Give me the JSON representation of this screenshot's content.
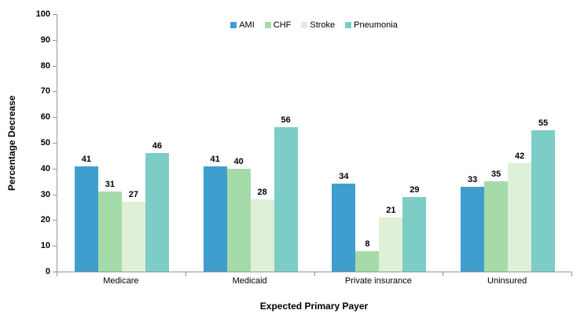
{
  "chart_data": {
    "type": "bar",
    "title": "",
    "categories": [
      "Medicare",
      "Medicaid",
      "Private insurance",
      "Uninsured"
    ],
    "series": [
      {
        "name": "AMI",
        "color": "#3f9ecd",
        "values": [
          41,
          41,
          34,
          33
        ]
      },
      {
        "name": "CHF",
        "color": "#a5dba8",
        "values": [
          31,
          40,
          8,
          35
        ]
      },
      {
        "name": "Stroke",
        "color": "#def0d8",
        "values": [
          27,
          28,
          21,
          42
        ]
      },
      {
        "name": "Pneumonia",
        "color": "#7ccdc6",
        "values": [
          46,
          56,
          29,
          55
        ]
      }
    ],
    "xlabel": "Expected Primary Payer",
    "ylabel": "Percentage Decrease",
    "ylim": [
      0,
      100
    ],
    "ytick_step": 10,
    "grid": false,
    "legend_position": "top-center",
    "bar_value_labels": true
  },
  "colors": {
    "axis": "#969696",
    "text": "#000000",
    "background": "#ffffff"
  }
}
